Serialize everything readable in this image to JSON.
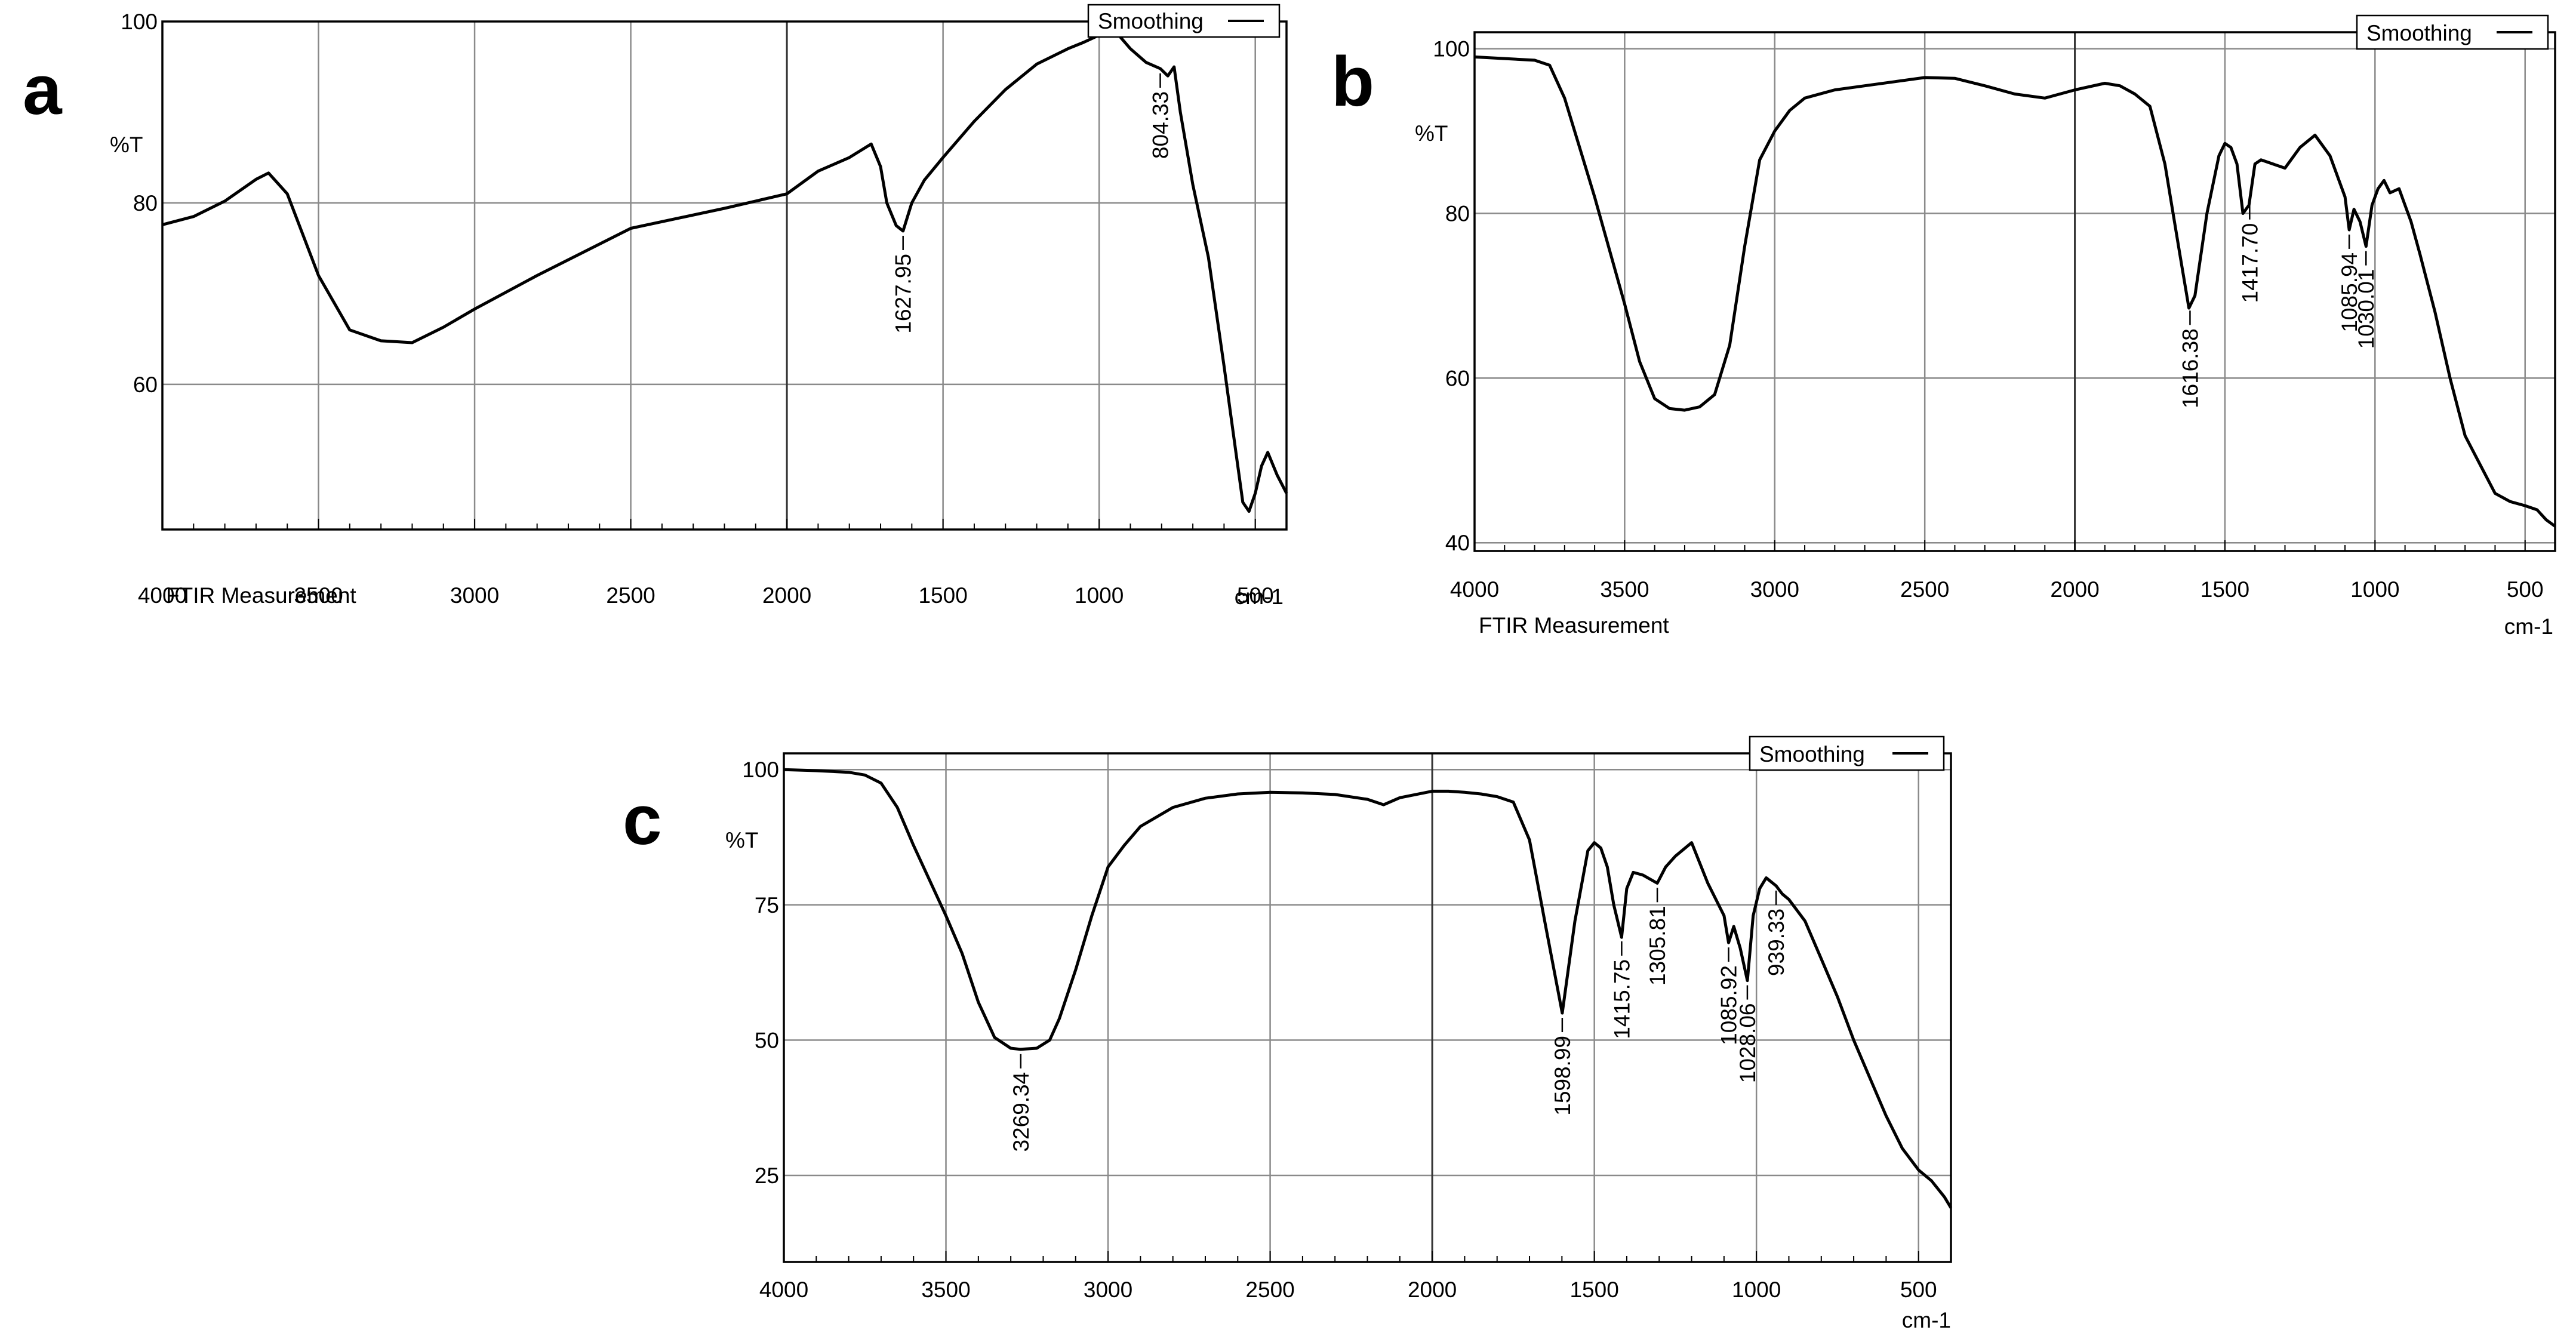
{
  "panels": [
    {
      "letter": "a"
    },
    {
      "letter": "b"
    },
    {
      "letter": "c"
    }
  ],
  "chart_data": [
    {
      "type": "line",
      "panel": "a",
      "legend": "Smoothing",
      "legend_position": "top-right",
      "ylabel": "%T",
      "xlabel": "FTIR Measurement",
      "xunit": "cm-1",
      "xlim": [
        4000,
        400
      ],
      "ylim": [
        44,
        100
      ],
      "grid": true,
      "xticks": [
        4000,
        3500,
        3000,
        2500,
        2000,
        1500,
        1000,
        500
      ],
      "xtick_labels": [
        "4000",
        "3500",
        "3000",
        "2500",
        "2000",
        "1500",
        "1000",
        "500"
      ],
      "yticks": [
        100,
        80,
        60
      ],
      "ytick_labels": [
        "100",
        "80",
        "60"
      ],
      "series": [
        {
          "name": "Smoothing",
          "x": [
            4000,
            3900,
            3800,
            3700,
            3660,
            3600,
            3500,
            3400,
            3300,
            3200,
            3100,
            3000,
            2800,
            2500,
            2200,
            2000,
            1900,
            1800,
            1730,
            1700,
            1680,
            1650,
            1628,
            1600,
            1560,
            1500,
            1400,
            1300,
            1200,
            1100,
            1050,
            1000,
            950,
            900,
            850,
            804,
            780,
            760,
            740,
            700,
            650,
            600,
            560,
            540,
            520,
            500,
            480,
            460,
            430,
            400
          ],
          "y": [
            77.6,
            78.5,
            80.2,
            82.6,
            83.3,
            81,
            72,
            66,
            64.8,
            64.6,
            66.3,
            68.3,
            72,
            77.2,
            79.4,
            81,
            83.5,
            85,
            86.5,
            84,
            80,
            77.5,
            76.9,
            80,
            82.5,
            85,
            89,
            92.5,
            95.3,
            97,
            97.7,
            98.5,
            99,
            97,
            95.5,
            94.8,
            94,
            95,
            90,
            82,
            74,
            62,
            52,
            47,
            46,
            48,
            51,
            52.5,
            50,
            48
          ]
        }
      ],
      "peaks": [
        {
          "x": 1627.95,
          "label": "1627.95"
        },
        {
          "x": 804.33,
          "label": "804.33"
        }
      ]
    },
    {
      "type": "line",
      "panel": "b",
      "legend": "Smoothing",
      "legend_position": "top-right",
      "ylabel": "%T",
      "xlabel": "FTIR Measurement",
      "xunit": "cm-1",
      "xlim": [
        4000,
        400
      ],
      "ylim": [
        39,
        102
      ],
      "grid": true,
      "xticks": [
        4000,
        3500,
        3000,
        2500,
        2000,
        1500,
        1000,
        500
      ],
      "xtick_labels": [
        "4000",
        "3500",
        "3000",
        "2500",
        "2000",
        "1500",
        "1000",
        "500"
      ],
      "yticks": [
        100,
        80,
        60,
        40
      ],
      "ytick_labels": [
        "100",
        "80",
        "60",
        "40"
      ],
      "series": [
        {
          "name": "Smoothing",
          "x": [
            4000,
            3900,
            3800,
            3750,
            3700,
            3650,
            3600,
            3500,
            3450,
            3400,
            3350,
            3300,
            3250,
            3200,
            3150,
            3100,
            3050,
            3000,
            2950,
            2900,
            2800,
            2700,
            2600,
            2500,
            2400,
            2300,
            2200,
            2100,
            2000,
            1900,
            1850,
            1800,
            1750,
            1700,
            1650,
            1620,
            1600,
            1560,
            1520,
            1500,
            1480,
            1460,
            1440,
            1420,
            1400,
            1380,
            1300,
            1250,
            1200,
            1150,
            1100,
            1086,
            1070,
            1050,
            1030,
            1010,
            990,
            970,
            950,
            920,
            900,
            880,
            850,
            800,
            750,
            700,
            650,
            600,
            550,
            500,
            460,
            430,
            400
          ],
          "y": [
            99,
            98.8,
            98.6,
            98,
            94,
            88,
            82,
            69,
            62,
            57.5,
            56.3,
            56.1,
            56.5,
            58,
            64,
            76,
            86.5,
            90,
            92.5,
            94,
            95,
            95.5,
            96,
            96.5,
            96.4,
            95.5,
            94.5,
            94,
            95,
            95.8,
            95.5,
            94.5,
            93,
            86,
            75,
            68.5,
            70,
            80,
            87,
            88.5,
            88,
            86,
            80,
            81,
            86,
            86.5,
            85.5,
            88,
            89.5,
            87,
            82,
            78,
            80.5,
            79,
            76,
            81,
            83,
            84,
            82.5,
            83,
            81,
            79,
            75,
            68,
            60,
            53,
            49.5,
            46,
            45,
            44.5,
            44,
            42.8,
            42
          ]
        }
      ],
      "peaks": [
        {
          "x": 1616.38,
          "label": "1616.38"
        },
        {
          "x": 1417.7,
          "label": "1417.70"
        },
        {
          "x": 1085.94,
          "label": "1085.94"
        },
        {
          "x": 1030.01,
          "label": "1030.01"
        }
      ]
    },
    {
      "type": "line",
      "panel": "c",
      "legend": "Smoothing",
      "legend_position": "top-right",
      "ylabel": "%T",
      "xlabel": "",
      "xunit": "cm-1",
      "xlim": [
        4000,
        400
      ],
      "ylim": [
        9,
        103
      ],
      "grid": true,
      "xticks": [
        4000,
        3500,
        3000,
        2500,
        2000,
        1500,
        1000,
        500
      ],
      "xtick_labels": [
        "4000",
        "3500",
        "3000",
        "2500",
        "2000",
        "1500",
        "1000",
        "500"
      ],
      "yticks": [
        100,
        75,
        50,
        25
      ],
      "ytick_labels": [
        "100",
        "75",
        "50",
        "25"
      ],
      "series": [
        {
          "name": "Smoothing",
          "x": [
            4000,
            3900,
            3800,
            3750,
            3700,
            3650,
            3600,
            3500,
            3450,
            3400,
            3350,
            3300,
            3270,
            3220,
            3180,
            3150,
            3100,
            3050,
            3000,
            2950,
            2900,
            2800,
            2700,
            2600,
            2500,
            2400,
            2300,
            2200,
            2150,
            2100,
            2000,
            1950,
            1900,
            1850,
            1800,
            1750,
            1700,
            1650,
            1599,
            1560,
            1520,
            1500,
            1480,
            1460,
            1440,
            1416,
            1400,
            1380,
            1350,
            1306,
            1280,
            1250,
            1200,
            1150,
            1100,
            1086,
            1070,
            1050,
            1028,
            1010,
            990,
            970,
            939,
            920,
            900,
            850,
            800,
            750,
            700,
            650,
            600,
            550,
            500,
            460,
            420,
            400
          ],
          "y": [
            100,
            99.8,
            99.5,
            99,
            97.5,
            93,
            86,
            73,
            66,
            57,
            50.5,
            48.5,
            48.3,
            48.5,
            50,
            54,
            63,
            73,
            82,
            86,
            89.5,
            93,
            94.7,
            95.5,
            95.8,
            95.7,
            95.4,
            94.5,
            93.5,
            94.8,
            96,
            96,
            95.8,
            95.5,
            95,
            94,
            87,
            71,
            55,
            72,
            85,
            86.5,
            85.5,
            82,
            75,
            69,
            78,
            81,
            80.5,
            79,
            82,
            84,
            86.5,
            79,
            73,
            68,
            71,
            67,
            61,
            73,
            78,
            80,
            78.5,
            77,
            76,
            72,
            65,
            58,
            50,
            43,
            36,
            30,
            26,
            24,
            21,
            19
          ]
        }
      ],
      "peaks": [
        {
          "x": 3269.34,
          "label": "3269.34"
        },
        {
          "x": 1598.99,
          "label": "1598.99"
        },
        {
          "x": 1415.75,
          "label": "1415.75"
        },
        {
          "x": 1305.81,
          "label": "1305.81"
        },
        {
          "x": 1085.92,
          "label": "1085.92"
        },
        {
          "x": 1028.06,
          "label": "1028.06"
        },
        {
          "x": 939.33,
          "label": "939.33"
        }
      ]
    }
  ]
}
